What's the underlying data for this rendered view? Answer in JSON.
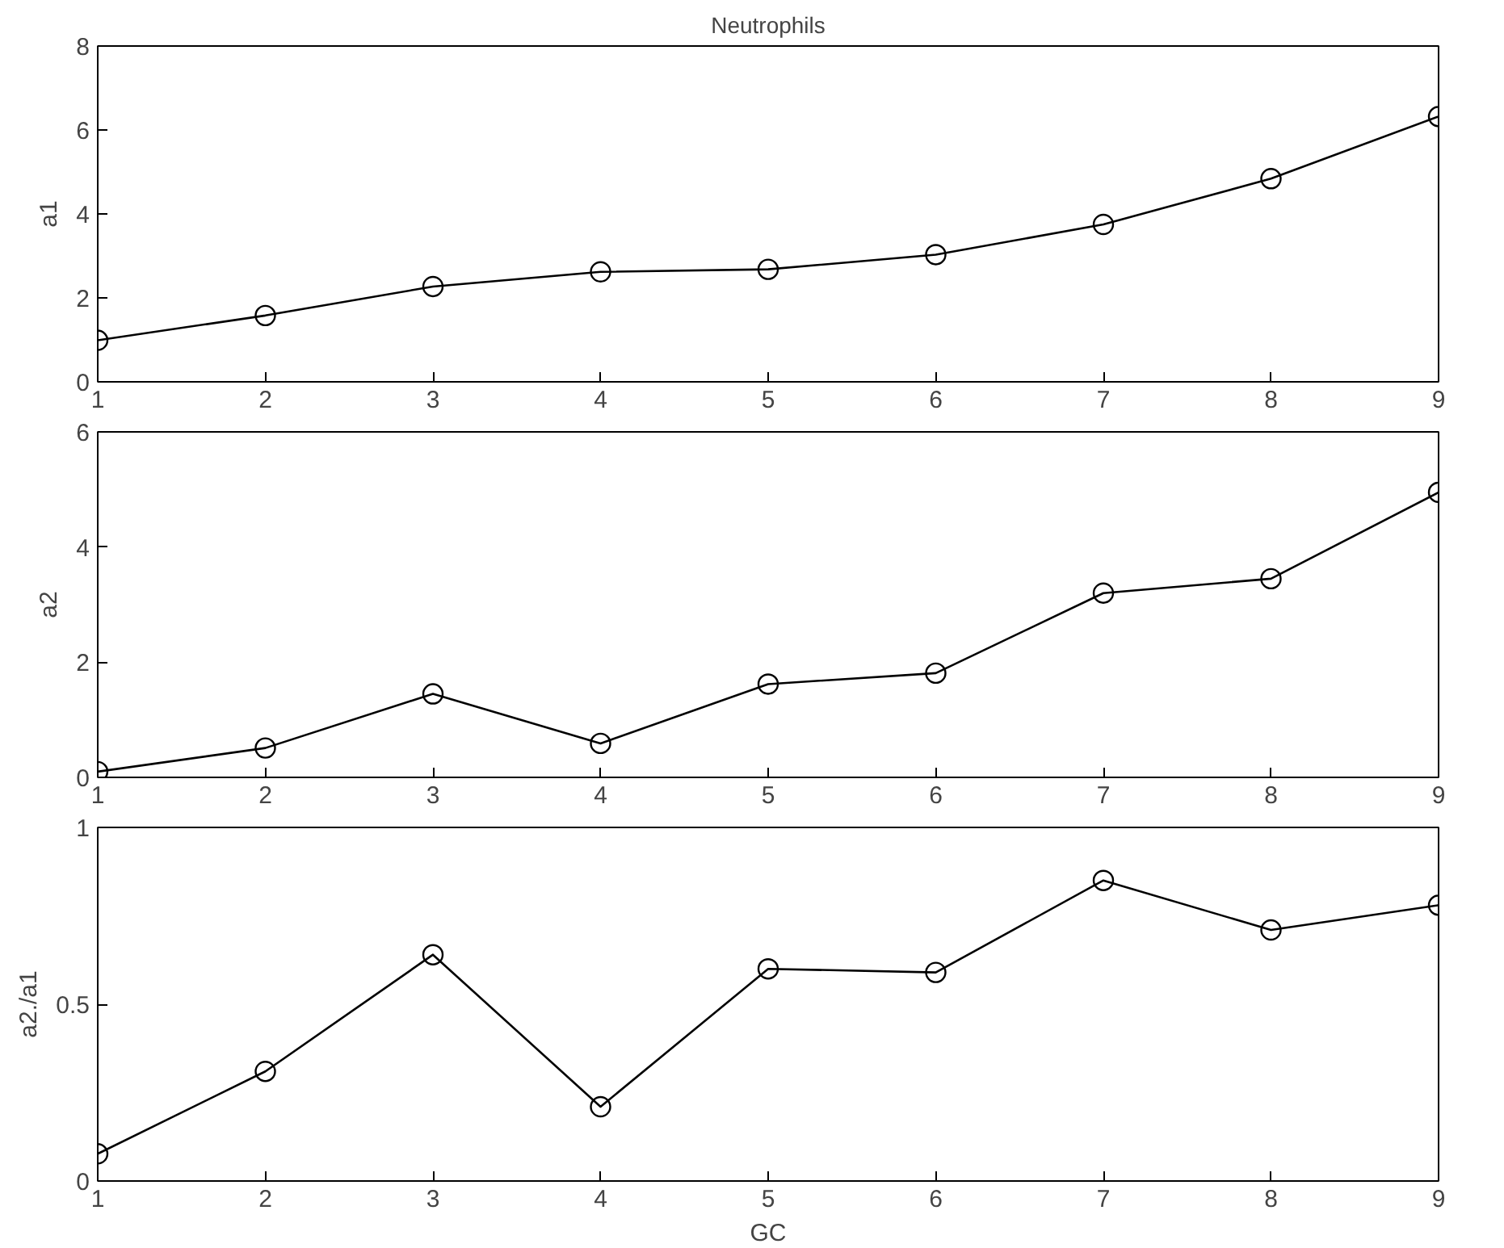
{
  "chart_data": [
    {
      "type": "line",
      "title": "Neutrophils",
      "ylabel": "a1",
      "x": [
        1,
        2,
        3,
        4,
        5,
        6,
        7,
        8,
        9
      ],
      "xlim": [
        1,
        9
      ],
      "xticks": [
        1,
        2,
        3,
        4,
        5,
        6,
        7,
        8,
        9
      ],
      "ylim": [
        0,
        8
      ],
      "yticks": [
        0,
        2,
        4,
        6,
        8
      ],
      "grid": false,
      "marker": "circle",
      "line_style": "solid",
      "series": [
        {
          "color": "#000000",
          "values": [
            0.99,
            1.58,
            2.27,
            2.62,
            2.68,
            3.03,
            3.75,
            4.84,
            6.32
          ]
        }
      ]
    },
    {
      "type": "line",
      "ylabel": "a2",
      "x": [
        1,
        2,
        3,
        4,
        5,
        6,
        7,
        8,
        9
      ],
      "xlim": [
        1,
        9
      ],
      "xticks": [
        1,
        2,
        3,
        4,
        5,
        6,
        7,
        8,
        9
      ],
      "ylim": [
        0,
        6
      ],
      "yticks": [
        0,
        2,
        4,
        6
      ],
      "grid": false,
      "marker": "circle",
      "line_style": "solid",
      "series": [
        {
          "color": "#000000",
          "values": [
            0.1,
            0.51,
            1.45,
            0.59,
            1.62,
            1.81,
            3.2,
            3.45,
            4.95
          ]
        }
      ]
    },
    {
      "type": "line",
      "xlabel": "GC",
      "ylabel": "a2./a1",
      "x": [
        1,
        2,
        3,
        4,
        5,
        6,
        7,
        8,
        9
      ],
      "xlim": [
        1,
        9
      ],
      "xticks": [
        1,
        2,
        3,
        4,
        5,
        6,
        7,
        8,
        9
      ],
      "ylim": [
        0,
        1
      ],
      "yticks": [
        0,
        0.5,
        1
      ],
      "grid": false,
      "marker": "circle",
      "line_style": "solid",
      "series": [
        {
          "color": "#000000",
          "values": [
            0.077,
            0.31,
            0.64,
            0.21,
            0.6,
            0.59,
            0.85,
            0.71,
            0.78
          ]
        }
      ]
    }
  ]
}
